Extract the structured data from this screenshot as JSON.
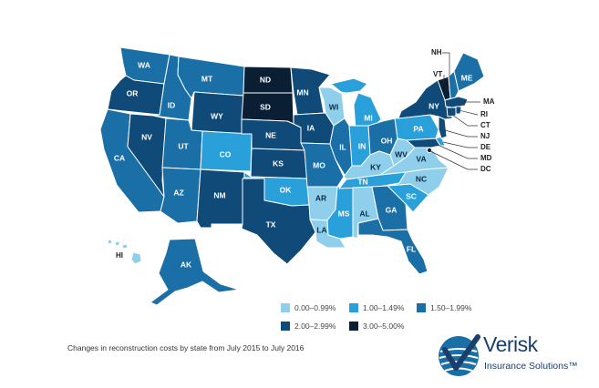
{
  "colors": {
    "c0": "#8fcfeb",
    "c1": "#2aa0db",
    "c2": "#1a6fa6",
    "c3": "#0f4a78",
    "c4": "#0a1f33"
  },
  "legend": [
    {
      "key": "c0",
      "label": "0.00–0.99%"
    },
    {
      "key": "c1",
      "label": "1.00–1.49%"
    },
    {
      "key": "c2",
      "label": "1.50–1.99%"
    },
    {
      "key": "c3",
      "label": "2.00–2.99%"
    },
    {
      "key": "c4",
      "label": "3.00–5.00%"
    }
  ],
  "caption": "Changes in reconstruction costs by state from July 2015 to July 2016",
  "logo": {
    "name": "Verisk",
    "subtitle": "Insurance Solutions™",
    "icon": "verisk-check-globe-icon"
  },
  "states": [
    {
      "abbr": "WA",
      "cls": "c2"
    },
    {
      "abbr": "OR",
      "cls": "c3"
    },
    {
      "abbr": "CA",
      "cls": "c2"
    },
    {
      "abbr": "ID",
      "cls": "c2"
    },
    {
      "abbr": "NV",
      "cls": "c3"
    },
    {
      "abbr": "MT",
      "cls": "c2"
    },
    {
      "abbr": "WY",
      "cls": "c3"
    },
    {
      "abbr": "UT",
      "cls": "c2"
    },
    {
      "abbr": "AZ",
      "cls": "c2"
    },
    {
      "abbr": "CO",
      "cls": "c1"
    },
    {
      "abbr": "NM",
      "cls": "c3"
    },
    {
      "abbr": "ND",
      "cls": "c4"
    },
    {
      "abbr": "SD",
      "cls": "c4"
    },
    {
      "abbr": "NE",
      "cls": "c3"
    },
    {
      "abbr": "KS",
      "cls": "c3"
    },
    {
      "abbr": "OK",
      "cls": "c1"
    },
    {
      "abbr": "TX",
      "cls": "c3"
    },
    {
      "abbr": "MN",
      "cls": "c3"
    },
    {
      "abbr": "IA",
      "cls": "c3"
    },
    {
      "abbr": "MO",
      "cls": "c2"
    },
    {
      "abbr": "AR",
      "cls": "c0"
    },
    {
      "abbr": "LA",
      "cls": "c0"
    },
    {
      "abbr": "WI",
      "cls": "c0"
    },
    {
      "abbr": "IL",
      "cls": "c2"
    },
    {
      "abbr": "MS",
      "cls": "c1"
    },
    {
      "abbr": "MI",
      "cls": "c1"
    },
    {
      "abbr": "IN",
      "cls": "c1"
    },
    {
      "abbr": "KY",
      "cls": "c0"
    },
    {
      "abbr": "TN",
      "cls": "c1"
    },
    {
      "abbr": "AL",
      "cls": "c0"
    },
    {
      "abbr": "GA",
      "cls": "c2"
    },
    {
      "abbr": "FL",
      "cls": "c2"
    },
    {
      "abbr": "OH",
      "cls": "c2"
    },
    {
      "abbr": "WV",
      "cls": "c0"
    },
    {
      "abbr": "VA",
      "cls": "c0"
    },
    {
      "abbr": "NC",
      "cls": "c0"
    },
    {
      "abbr": "SC",
      "cls": "c1"
    },
    {
      "abbr": "PA",
      "cls": "c1"
    },
    {
      "abbr": "NY",
      "cls": "c3"
    },
    {
      "abbr": "VT",
      "cls": "c4"
    },
    {
      "abbr": "NH",
      "cls": "c2"
    },
    {
      "abbr": "ME",
      "cls": "c2"
    },
    {
      "abbr": "MA",
      "cls": "c3"
    },
    {
      "abbr": "RI",
      "cls": "c3"
    },
    {
      "abbr": "CT",
      "cls": "c3"
    },
    {
      "abbr": "NJ",
      "cls": "c3"
    },
    {
      "abbr": "DE",
      "cls": "c1"
    },
    {
      "abbr": "MD",
      "cls": "c3"
    },
    {
      "abbr": "DC",
      "cls": "c4"
    },
    {
      "abbr": "AK",
      "cls": "c2"
    },
    {
      "abbr": "HI",
      "cls": "c0"
    }
  ]
}
